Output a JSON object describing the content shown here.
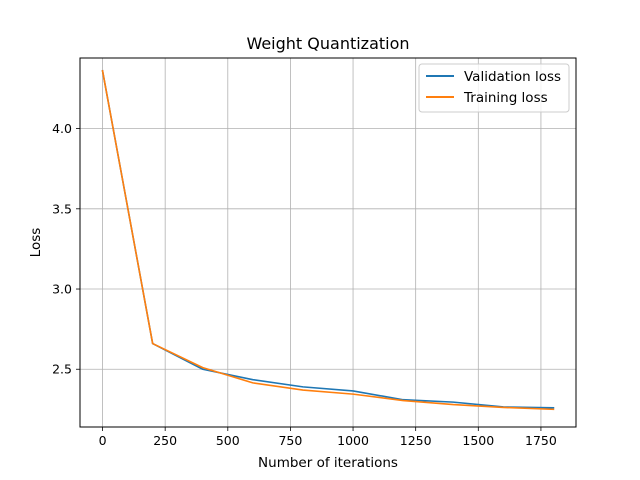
{
  "chart_data": {
    "type": "line",
    "title": "Weight Quantization",
    "xlabel": "Number of iterations",
    "ylabel": "Loss",
    "xlim": [
      -90,
      1890
    ],
    "ylim": [
      2.14,
      4.44
    ],
    "xticks": [
      0,
      250,
      500,
      750,
      1000,
      1250,
      1500,
      1750
    ],
    "yticks": [
      2.5,
      3.0,
      3.5,
      4.0
    ],
    "ytick_labels": [
      "2.5",
      "3.0",
      "3.5",
      "4.0"
    ],
    "grid": true,
    "legend_position": "top-right",
    "series": [
      {
        "name": "Validation loss",
        "color": "#1f77b4",
        "x": [
          0,
          200,
          400,
          600,
          800,
          1000,
          1200,
          1400,
          1600,
          1800
        ],
        "y": [
          4.36,
          2.66,
          2.5,
          2.435,
          2.39,
          2.365,
          2.31,
          2.295,
          2.265,
          2.26
        ]
      },
      {
        "name": "Training loss",
        "color": "#ff7f0e",
        "x": [
          0,
          200,
          400,
          600,
          800,
          1000,
          1200,
          1400,
          1600,
          1800
        ],
        "y": [
          4.36,
          2.66,
          2.51,
          2.415,
          2.37,
          2.345,
          2.305,
          2.28,
          2.262,
          2.25
        ]
      }
    ]
  }
}
